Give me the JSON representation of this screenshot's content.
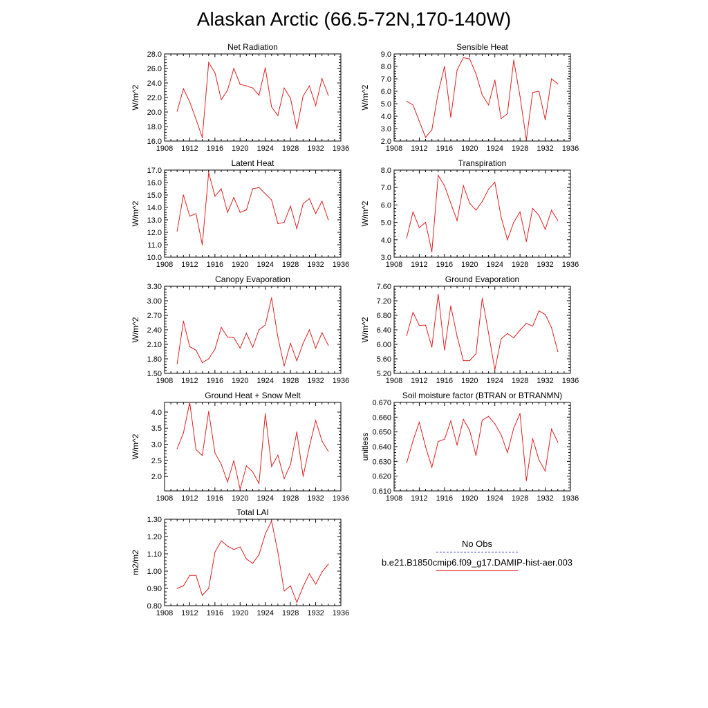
{
  "page_title": "Alaskan Arctic (66.5-72N,170-140W)",
  "legend": {
    "entries": [
      {
        "label": "No Obs",
        "color": "#3333cc",
        "style": "dashed"
      },
      {
        "label": "b.e21.B1850cmip6.f09_g17.DAMIP-hist-aer.003",
        "color": "#e02020",
        "style": "solid"
      }
    ]
  },
  "colors": {
    "series": "#e02020",
    "axis": "#000000"
  },
  "chart_data": [
    {
      "type": "line",
      "title": "Net Radiation",
      "ylabel": "W/m^2",
      "xlim": [
        1908,
        1936
      ],
      "ylim": [
        16.0,
        28.0
      ],
      "xticks": [
        "1908",
        "1912",
        "1916",
        "1920",
        "1924",
        "1928",
        "1932",
        "1936"
      ],
      "yticks": [
        "16.0",
        "18.0",
        "20.0",
        "22.0",
        "24.0",
        "26.0",
        "28.0"
      ],
      "x": [
        1910,
        1911,
        1912,
        1913,
        1914,
        1915,
        1916,
        1917,
        1918,
        1919,
        1920,
        1921,
        1922,
        1923,
        1924,
        1925,
        1926,
        1927,
        1928,
        1929,
        1930,
        1931,
        1932,
        1933,
        1934
      ],
      "values": [
        20.1,
        23.2,
        21.4,
        19.0,
        16.5,
        26.8,
        25.4,
        21.7,
        23.0,
        26.0,
        23.8,
        23.6,
        23.3,
        22.3,
        26.1,
        20.7,
        19.5,
        23.3,
        21.9,
        17.7,
        22.2,
        23.6,
        20.9,
        24.6,
        22.3
      ]
    },
    {
      "type": "line",
      "title": "Sensible Heat",
      "ylabel": "W/m^2",
      "xlim": [
        1908,
        1936
      ],
      "ylim": [
        2.0,
        9.0
      ],
      "xticks": [
        "1908",
        "1912",
        "1916",
        "1920",
        "1924",
        "1928",
        "1932",
        "1936"
      ],
      "yticks": [
        "2.0",
        "3.0",
        "4.0",
        "5.0",
        "6.0",
        "7.0",
        "8.0",
        "9.0"
      ],
      "x": [
        1910,
        1911,
        1912,
        1913,
        1914,
        1915,
        1916,
        1917,
        1918,
        1919,
        1920,
        1921,
        1922,
        1923,
        1924,
        1925,
        1926,
        1927,
        1928,
        1929,
        1930,
        1931,
        1932,
        1933,
        1934
      ],
      "values": [
        5.2,
        4.9,
        3.6,
        2.3,
        2.9,
        5.9,
        8.0,
        3.9,
        7.7,
        8.7,
        8.6,
        7.4,
        5.7,
        4.9,
        6.9,
        3.8,
        4.2,
        8.5,
        5.6,
        2.1,
        5.9,
        6.0,
        3.7,
        7.0,
        6.6
      ]
    },
    {
      "type": "line",
      "title": "Latent Heat",
      "ylabel": "W/m^2",
      "xlim": [
        1908,
        1936
      ],
      "ylim": [
        10.0,
        17.0
      ],
      "xticks": [
        "1908",
        "1912",
        "1916",
        "1920",
        "1924",
        "1928",
        "1932",
        "1936"
      ],
      "yticks": [
        "10.0",
        "11.0",
        "12.0",
        "13.0",
        "14.0",
        "15.0",
        "16.0",
        "17.0"
      ],
      "x": [
        1910,
        1911,
        1912,
        1913,
        1914,
        1915,
        1916,
        1917,
        1918,
        1919,
        1920,
        1921,
        1922,
        1923,
        1924,
        1925,
        1926,
        1927,
        1928,
        1929,
        1930,
        1931,
        1932,
        1933,
        1934
      ],
      "values": [
        12.1,
        15.0,
        13.3,
        13.5,
        11.0,
        16.8,
        14.9,
        15.5,
        13.6,
        14.8,
        13.6,
        13.8,
        15.5,
        15.6,
        15.1,
        14.6,
        12.7,
        12.8,
        14.1,
        12.3,
        14.3,
        14.7,
        13.5,
        14.5,
        13.0
      ]
    },
    {
      "type": "line",
      "title": "Transpiration",
      "ylabel": "W/m^2",
      "xlim": [
        1908,
        1936
      ],
      "ylim": [
        3.0,
        8.0
      ],
      "xticks": [
        "1908",
        "1912",
        "1916",
        "1920",
        "1924",
        "1928",
        "1932",
        "1936"
      ],
      "yticks": [
        "3.0",
        "4.0",
        "5.0",
        "6.0",
        "7.0",
        "8.0"
      ],
      "x": [
        1910,
        1911,
        1912,
        1913,
        1914,
        1915,
        1916,
        1917,
        1918,
        1919,
        1920,
        1921,
        1922,
        1923,
        1924,
        1925,
        1926,
        1927,
        1928,
        1929,
        1930,
        1931,
        1932,
        1933,
        1934
      ],
      "values": [
        4.1,
        5.6,
        4.7,
        5.0,
        3.3,
        7.7,
        7.1,
        6.1,
        5.1,
        7.1,
        6.1,
        5.7,
        6.2,
        6.9,
        7.3,
        5.3,
        4.0,
        5.0,
        5.6,
        3.9,
        5.8,
        5.4,
        4.6,
        5.7,
        5.1
      ]
    },
    {
      "type": "line",
      "title": "Canopy Evaporation",
      "ylabel": "W/m^2",
      "xlim": [
        1908,
        1936
      ],
      "ylim": [
        1.5,
        3.3
      ],
      "xticks": [
        "1908",
        "1912",
        "1916",
        "1920",
        "1924",
        "1928",
        "1932",
        "1936"
      ],
      "yticks": [
        "1.50",
        "1.80",
        "2.10",
        "2.40",
        "2.70",
        "3.00",
        "3.30"
      ],
      "x": [
        1910,
        1911,
        1912,
        1913,
        1914,
        1915,
        1916,
        1917,
        1918,
        1919,
        1920,
        1921,
        1922,
        1923,
        1924,
        1925,
        1926,
        1927,
        1928,
        1929,
        1930,
        1931,
        1932,
        1933,
        1934
      ],
      "values": [
        1.7,
        2.58,
        2.05,
        1.98,
        1.72,
        1.8,
        2.0,
        2.45,
        2.25,
        2.24,
        2.02,
        2.33,
        2.04,
        2.4,
        2.5,
        3.06,
        2.25,
        1.65,
        2.12,
        1.76,
        2.12,
        2.4,
        2.02,
        2.34,
        2.08
      ]
    },
    {
      "type": "line",
      "title": "Ground Evaporation",
      "ylabel": "W/m^2",
      "xlim": [
        1908,
        1936
      ],
      "ylim": [
        5.2,
        7.6
      ],
      "xticks": [
        "1908",
        "1912",
        "1916",
        "1920",
        "1924",
        "1928",
        "1932",
        "1936"
      ],
      "yticks": [
        "5.20",
        "5.60",
        "6.00",
        "6.40",
        "6.80",
        "7.20",
        "7.60"
      ],
      "x": [
        1910,
        1911,
        1912,
        1913,
        1914,
        1915,
        1916,
        1917,
        1918,
        1919,
        1920,
        1921,
        1922,
        1923,
        1924,
        1925,
        1926,
        1927,
        1928,
        1929,
        1930,
        1931,
        1932,
        1933,
        1934
      ],
      "values": [
        6.24,
        6.88,
        6.52,
        6.53,
        5.92,
        7.38,
        5.84,
        7.06,
        6.22,
        5.55,
        5.55,
        5.74,
        7.27,
        6.31,
        5.3,
        6.15,
        6.3,
        6.18,
        6.39,
        6.58,
        6.5,
        6.92,
        6.82,
        6.46,
        5.8
      ]
    },
    {
      "type": "line",
      "title": "Ground Heat + Snow Melt",
      "ylabel": "W/m^2",
      "xlim": [
        1908,
        1936
      ],
      "ylim": [
        1.55,
        4.3
      ],
      "xticks": [
        "1908",
        "1912",
        "1916",
        "1920",
        "1924",
        "1928",
        "1932",
        "1936"
      ],
      "yticks": [
        "2.0",
        "2.5",
        "3.0",
        "3.5",
        "4.0"
      ],
      "ytick_values": [
        2.0,
        2.5,
        3.0,
        3.5,
        4.0
      ],
      "x": [
        1910,
        1911,
        1912,
        1913,
        1914,
        1915,
        1916,
        1917,
        1918,
        1919,
        1920,
        1921,
        1922,
        1923,
        1924,
        1925,
        1926,
        1927,
        1928,
        1929,
        1930,
        1931,
        1932,
        1933,
        1934
      ],
      "values": [
        2.86,
        3.35,
        4.3,
        2.83,
        2.65,
        4.02,
        2.73,
        2.38,
        1.83,
        2.49,
        1.6,
        2.33,
        2.14,
        1.78,
        3.95,
        2.31,
        2.66,
        1.93,
        2.37,
        3.38,
        2.0,
        2.93,
        3.74,
        3.1,
        2.78
      ]
    },
    {
      "type": "line",
      "title": "Soil moisture factor (BTRAN or BTRANMN)",
      "ylabel": "unitless",
      "xlim": [
        1908,
        1936
      ],
      "ylim": [
        0.61,
        0.67
      ],
      "xticks": [
        "1908",
        "1912",
        "1916",
        "1920",
        "1924",
        "1928",
        "1932",
        "1936"
      ],
      "yticks": [
        "0.610",
        "0.620",
        "0.630",
        "0.640",
        "0.650",
        "0.660",
        "0.670"
      ],
      "x": [
        1910,
        1911,
        1912,
        1913,
        1914,
        1915,
        1916,
        1917,
        1918,
        1919,
        1920,
        1921,
        1922,
        1923,
        1924,
        1925,
        1926,
        1927,
        1928,
        1929,
        1930,
        1931,
        1932,
        1933,
        1934
      ],
      "values": [
        0.629,
        0.644,
        0.6565,
        0.64,
        0.626,
        0.6435,
        0.645,
        0.6575,
        0.641,
        0.6585,
        0.651,
        0.634,
        0.658,
        0.6605,
        0.6555,
        0.648,
        0.636,
        0.6525,
        0.6625,
        0.617,
        0.6455,
        0.631,
        0.6235,
        0.652,
        0.643
      ]
    },
    {
      "type": "line",
      "title": "Total LAI",
      "ylabel": "m2/m2",
      "xlim": [
        1908,
        1936
      ],
      "ylim": [
        0.8,
        1.3
      ],
      "xticks": [
        "1908",
        "1912",
        "1916",
        "1920",
        "1924",
        "1928",
        "1932",
        "1936"
      ],
      "yticks": [
        "0.80",
        "0.90",
        "1.00",
        "1.10",
        "1.20",
        "1.30"
      ],
      "x": [
        1910,
        1911,
        1912,
        1913,
        1914,
        1915,
        1916,
        1917,
        1918,
        1919,
        1920,
        1921,
        1922,
        1923,
        1924,
        1925,
        1926,
        1927,
        1928,
        1929,
        1930,
        1931,
        1932,
        1933,
        1934
      ],
      "values": [
        0.9,
        0.915,
        0.975,
        0.975,
        0.86,
        0.9,
        1.11,
        1.175,
        1.145,
        1.125,
        1.14,
        1.07,
        1.045,
        1.095,
        1.215,
        1.29,
        1.11,
        0.885,
        0.915,
        0.82,
        0.91,
        0.985,
        0.925,
        0.995,
        1.04
      ]
    }
  ]
}
